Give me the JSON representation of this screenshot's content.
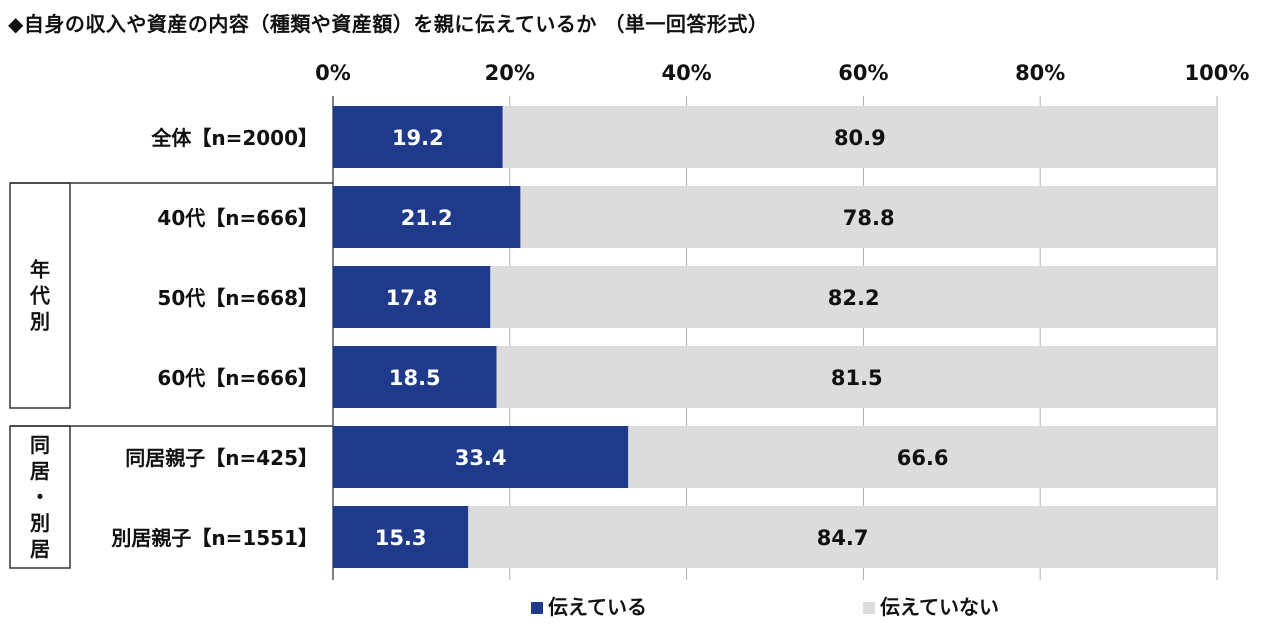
{
  "title": "◆自身の収入や資産の内容（種類や資産額）を親に伝えているか （単一回答形式）",
  "colors": {
    "told": "#1f3a8a",
    "not_told": "#dcdcdc",
    "told_label": "#ffffff",
    "not_told_label": "#111111",
    "grid": "#b0b0b0"
  },
  "chart_data": {
    "type": "bar",
    "orientation": "horizontal",
    "stacked": true,
    "title": "◆自身の収入や資産の内容（種類や資産額）を親に伝えているか （単一回答形式）",
    "xlabel": "",
    "ylabel": "",
    "xlim": [
      0,
      100
    ],
    "xticks": [
      "0%",
      "20%",
      "40%",
      "60%",
      "80%",
      "100%"
    ],
    "grid": true,
    "legend_position": "bottom",
    "categories": [
      "全体【n=2000】",
      "40代【n=666】",
      "50代【n=668】",
      "60代【n=666】",
      "同居親子【n=425】",
      "別居親子【n=1551】"
    ],
    "groups": [
      {
        "label": "年代別",
        "from": 1,
        "to": 3
      },
      {
        "label": "同居・別居",
        "from": 4,
        "to": 5
      }
    ],
    "series": [
      {
        "name": "伝えている",
        "values": [
          19.2,
          21.2,
          17.8,
          18.5,
          33.4,
          15.3
        ],
        "labels": [
          "19.2",
          "21.2",
          "17.8",
          "18.5",
          "33.4",
          "15.3"
        ]
      },
      {
        "name": "伝えていない",
        "values": [
          80.9,
          78.8,
          82.2,
          81.5,
          66.6,
          84.7
        ],
        "labels": [
          "80.9",
          "78.8",
          "82.2",
          "81.5",
          "66.6",
          "84.7"
        ]
      }
    ]
  }
}
